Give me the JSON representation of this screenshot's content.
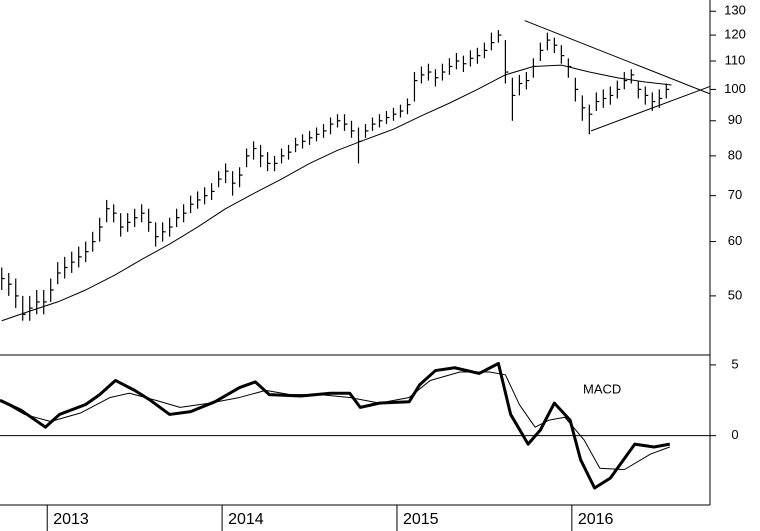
{
  "chart_data": [
    {
      "type": "ohlc",
      "log_scale": true,
      "color": "#000000",
      "xlim": [
        2012.73,
        2016.79
      ],
      "ylim": [
        41,
        135
      ],
      "yticks": [
        50,
        60,
        70,
        80,
        90,
        100,
        110,
        120,
        130
      ],
      "x": [
        2012.74,
        2012.78,
        2012.82,
        2012.86,
        2012.9,
        2012.94,
        2012.98,
        2013.02,
        2013.06,
        2013.1,
        2013.14,
        2013.18,
        2013.22,
        2013.26,
        2013.3,
        2013.34,
        2013.38,
        2013.42,
        2013.46,
        2013.5,
        2013.54,
        2013.58,
        2013.62,
        2013.66,
        2013.7,
        2013.74,
        2013.78,
        2013.82,
        2013.86,
        2013.9,
        2013.94,
        2013.98,
        2014.02,
        2014.06,
        2014.1,
        2014.14,
        2014.18,
        2014.22,
        2014.26,
        2014.3,
        2014.34,
        2014.38,
        2014.42,
        2014.46,
        2014.5,
        2014.54,
        2014.58,
        2014.62,
        2014.66,
        2014.7,
        2014.74,
        2014.78,
        2014.82,
        2014.86,
        2014.9,
        2014.94,
        2014.98,
        2015.02,
        2015.06,
        2015.1,
        2015.14,
        2015.18,
        2015.22,
        2015.26,
        2015.3,
        2015.34,
        2015.38,
        2015.42,
        2015.46,
        2015.5,
        2015.54,
        2015.58,
        2015.62,
        2015.66,
        2015.7,
        2015.74,
        2015.78,
        2015.82,
        2015.86,
        2015.9,
        2015.94,
        2015.98,
        2016.02,
        2016.06,
        2016.1,
        2016.14,
        2016.18,
        2016.22,
        2016.26,
        2016.3,
        2016.34,
        2016.38,
        2016.42,
        2016.46,
        2016.5,
        2016.54
      ],
      "high": [
        55,
        54,
        53,
        50,
        50,
        51,
        51,
        53,
        56,
        57,
        58,
        59,
        60,
        62,
        65,
        69,
        68,
        66,
        66,
        67,
        68,
        67,
        64,
        64,
        65,
        67,
        68,
        70,
        71,
        72,
        73,
        76,
        78,
        76,
        77,
        82,
        84,
        83,
        81,
        80,
        82,
        83,
        85,
        86,
        87,
        88,
        89,
        91,
        92,
        92,
        90,
        88,
        89,
        91,
        92,
        93,
        94,
        95,
        97,
        106,
        108,
        109,
        107,
        109,
        111,
        113,
        112,
        114,
        115,
        117,
        121,
        122,
        118,
        104,
        105,
        106,
        111,
        117,
        121,
        119,
        116,
        111,
        104,
        98,
        95,
        99,
        100,
        101,
        103,
        106,
        107,
        103,
        101,
        99,
        100,
        102
      ],
      "low": [
        51,
        50,
        48,
        46,
        46,
        47,
        47,
        49,
        52,
        53,
        54,
        55,
        56,
        58,
        60,
        64,
        64,
        61,
        62,
        63,
        64,
        62,
        59,
        60,
        61,
        63,
        64,
        66,
        67,
        68,
        69,
        72,
        73,
        70,
        72,
        77,
        79,
        77,
        76,
        76,
        78,
        79,
        81,
        82,
        83,
        84,
        85,
        86,
        88,
        87,
        85,
        78,
        85,
        87,
        88,
        89,
        90,
        91,
        92,
        96,
        102,
        103,
        101,
        103,
        105,
        107,
        106,
        108,
        109,
        111,
        114,
        117,
        102,
        90,
        98,
        100,
        104,
        110,
        114,
        113,
        109,
        104,
        96,
        90,
        86,
        93,
        94,
        95,
        97,
        100,
        102,
        97,
        95,
        93,
        94,
        97
      ],
      "close": [
        53,
        52,
        50,
        47,
        48,
        49,
        49,
        51,
        54,
        55,
        56,
        57,
        58,
        60,
        63,
        67,
        66,
        63,
        64,
        65,
        66,
        64,
        61,
        62,
        63,
        65,
        66,
        68,
        69,
        70,
        71,
        74,
        76,
        73,
        75,
        80,
        82,
        80,
        78,
        78,
        80,
        81,
        83,
        84,
        85,
        86,
        87,
        89,
        90,
        89,
        87,
        84,
        87,
        89,
        90,
        91,
        92,
        93,
        95,
        103,
        105,
        106,
        104,
        106,
        108,
        110,
        109,
        111,
        112,
        114,
        117,
        120,
        106,
        98,
        102,
        103,
        108,
        114,
        118,
        116,
        112,
        108,
        100,
        94,
        92,
        96,
        97,
        98,
        100,
        103,
        105,
        100,
        98,
        96,
        97,
        100
      ],
      "moving_average": {
        "x": [
          2012.74,
          2012.9,
          2013.06,
          2013.22,
          2013.38,
          2013.54,
          2013.7,
          2013.86,
          2014.02,
          2014.18,
          2014.34,
          2014.5,
          2014.66,
          2014.82,
          2014.98,
          2015.14,
          2015.3,
          2015.46,
          2015.62,
          2015.78,
          2015.94,
          2016.1,
          2016.26,
          2016.42,
          2016.57
        ],
        "values": [
          46,
          47.5,
          49,
          51,
          53.5,
          56.5,
          59.5,
          63,
          67,
          70.5,
          74,
          78,
          81.5,
          84.5,
          87.5,
          91.5,
          95.5,
          100,
          105,
          108,
          108.5,
          106,
          104,
          102.5,
          101.5
        ]
      },
      "trendlines": [
        {
          "x": [
            2015.73,
            2016.79
          ],
          "values": [
            126,
            98.5
          ]
        },
        {
          "x": [
            2016.11,
            2016.79
          ],
          "values": [
            87,
            101
          ]
        }
      ]
    },
    {
      "type": "line",
      "xlim": [
        2012.73,
        2016.79
      ],
      "ylim": [
        -4.9,
        5.7
      ],
      "yticks": [
        0,
        5
      ],
      "xticks": [
        2013,
        2014,
        2015,
        2016
      ],
      "zero_line": true,
      "series": [
        {
          "name": "MACD",
          "color": "#000000",
          "line_width": 3,
          "x": [
            2012.73,
            2012.85,
            2012.99,
            2013.07,
            2013.22,
            2013.3,
            2013.39,
            2013.5,
            2013.59,
            2013.7,
            2013.82,
            2013.96,
            2014.1,
            2014.19,
            2014.27,
            2014.45,
            2014.62,
            2014.73,
            2014.79,
            2014.9,
            2015.07,
            2015.13,
            2015.22,
            2015.33,
            2015.47,
            2015.58,
            2015.65,
            2015.75,
            2015.82,
            2015.9,
            2015.99,
            2016.05,
            2016.13,
            2016.22,
            2016.36,
            2016.47,
            2016.56
          ],
          "values": [
            2.5,
            1.8,
            0.6,
            1.5,
            2.2,
            2.9,
            3.9,
            3.2,
            2.5,
            1.5,
            1.7,
            2.4,
            3.4,
            3.8,
            2.9,
            2.8,
            3.0,
            3.0,
            2.0,
            2.3,
            2.4,
            3.6,
            4.6,
            4.8,
            4.4,
            5.1,
            1.5,
            -0.6,
            0.4,
            2.3,
            1.1,
            -1.7,
            -3.7,
            -3.0,
            -0.6,
            -0.8,
            -0.6
          ]
        },
        {
          "color": "#000000",
          "line_width": 1,
          "x": [
            2012.73,
            2012.87,
            2013.02,
            2013.19,
            2013.36,
            2013.47,
            2013.62,
            2013.76,
            2013.93,
            2014.1,
            2014.25,
            2014.39,
            2014.56,
            2014.73,
            2014.9,
            2015.07,
            2015.19,
            2015.36,
            2015.53,
            2015.62,
            2015.7,
            2015.79,
            2015.87,
            2015.96,
            2016.07,
            2016.16,
            2016.3,
            2016.45,
            2016.56
          ],
          "values": [
            2.5,
            1.5,
            1.0,
            1.6,
            2.7,
            3.0,
            2.5,
            2.0,
            2.3,
            2.7,
            3.2,
            2.9,
            2.9,
            2.7,
            2.3,
            2.7,
            3.9,
            4.5,
            4.5,
            4.3,
            2.2,
            0.6,
            1.1,
            1.3,
            -0.3,
            -2.3,
            -2.4,
            -1.3,
            -0.8
          ]
        }
      ]
    }
  ]
}
